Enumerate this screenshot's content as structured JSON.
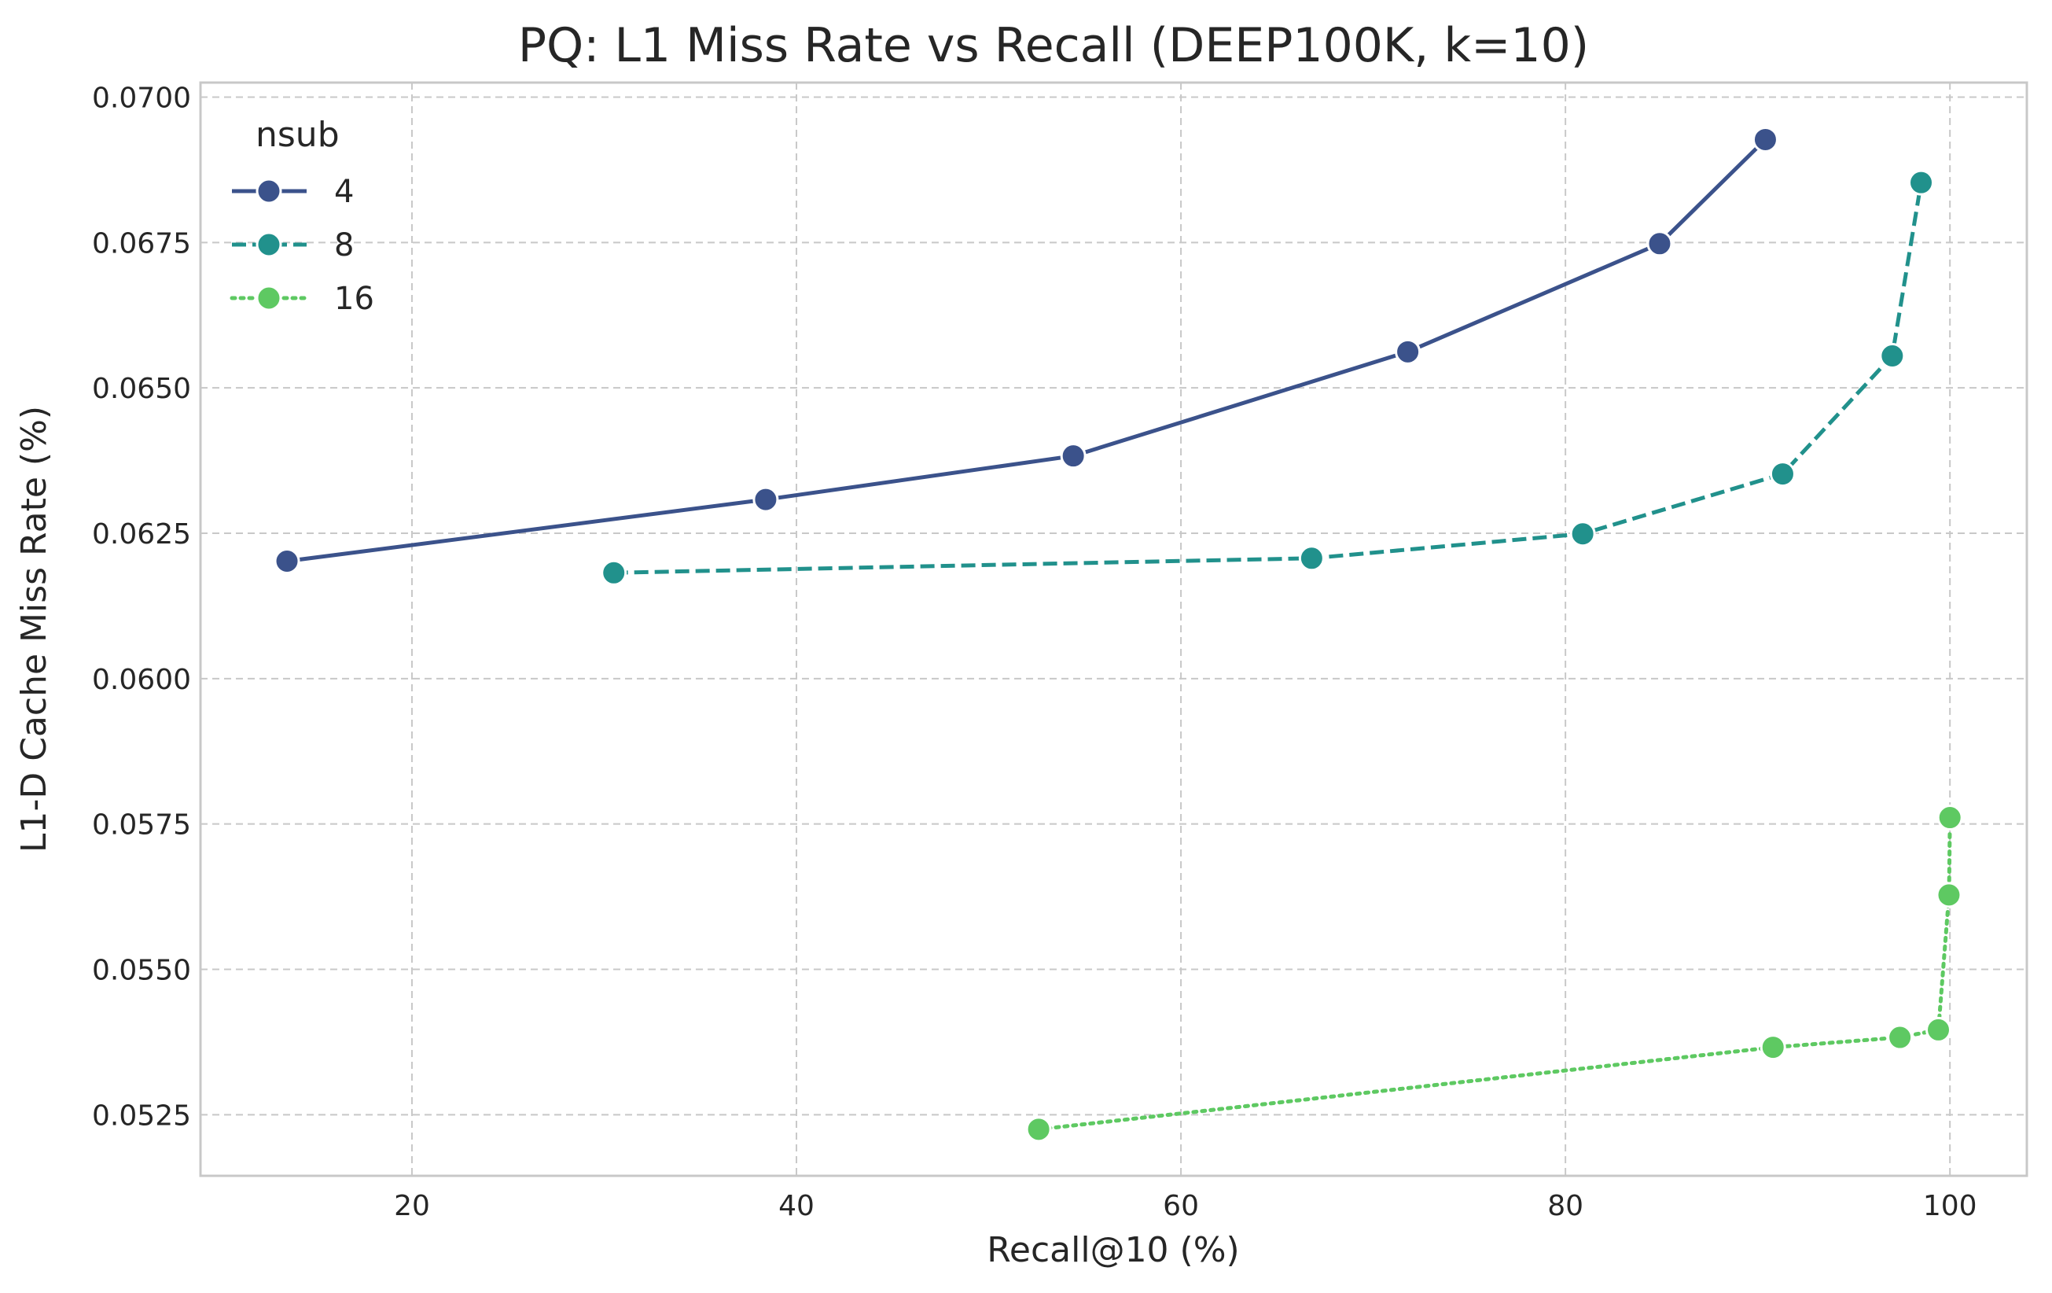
{
  "chart_data": {
    "type": "line",
    "title": "PQ: L1 Miss Rate vs Recall (DEEP100K, k=10)",
    "xlabel": "Recall@10 (%)",
    "ylabel": "L1-D Cache Miss Rate (%)",
    "xlim": [
      9,
      104
    ],
    "ylim": [
      0.05145,
      0.07025
    ],
    "xticks": [
      20,
      40,
      60,
      80,
      100
    ],
    "xtick_labels": [
      "20",
      "40",
      "60",
      "80",
      "100"
    ],
    "yticks": [
      0.0525,
      0.055,
      0.0575,
      0.06,
      0.0625,
      0.065,
      0.0675,
      0.07
    ],
    "ytick_labels": [
      "0.0525",
      "0.0550",
      "0.0575",
      "0.0600",
      "0.0625",
      "0.0650",
      "0.0675",
      "0.0700"
    ],
    "grid": true,
    "legend": {
      "title": "nsub",
      "placement": "top-left"
    },
    "series": [
      {
        "name": "4",
        "color": "#3b528b",
        "linestyle": "solid",
        "x": [
          13.5,
          38.4,
          54.4,
          71.8,
          84.9,
          90.4
        ],
        "y": [
          0.06202,
          0.06308,
          0.06383,
          0.06562,
          0.06748,
          0.06927
        ]
      },
      {
        "name": "8",
        "color": "#21918c",
        "linestyle": "dashed",
        "x": [
          30.5,
          66.8,
          80.9,
          91.3,
          97.0,
          98.5
        ],
        "y": [
          0.06182,
          0.06207,
          0.06249,
          0.06352,
          0.06555,
          0.06853
        ]
      },
      {
        "name": "16",
        "color": "#5ec962",
        "linestyle": "dotted",
        "x": [
          52.6,
          90.8,
          97.4,
          99.4,
          99.95,
          100.0
        ],
        "y": [
          0.05225,
          0.05366,
          0.05383,
          0.05396,
          0.05628,
          0.05761
        ]
      }
    ]
  }
}
